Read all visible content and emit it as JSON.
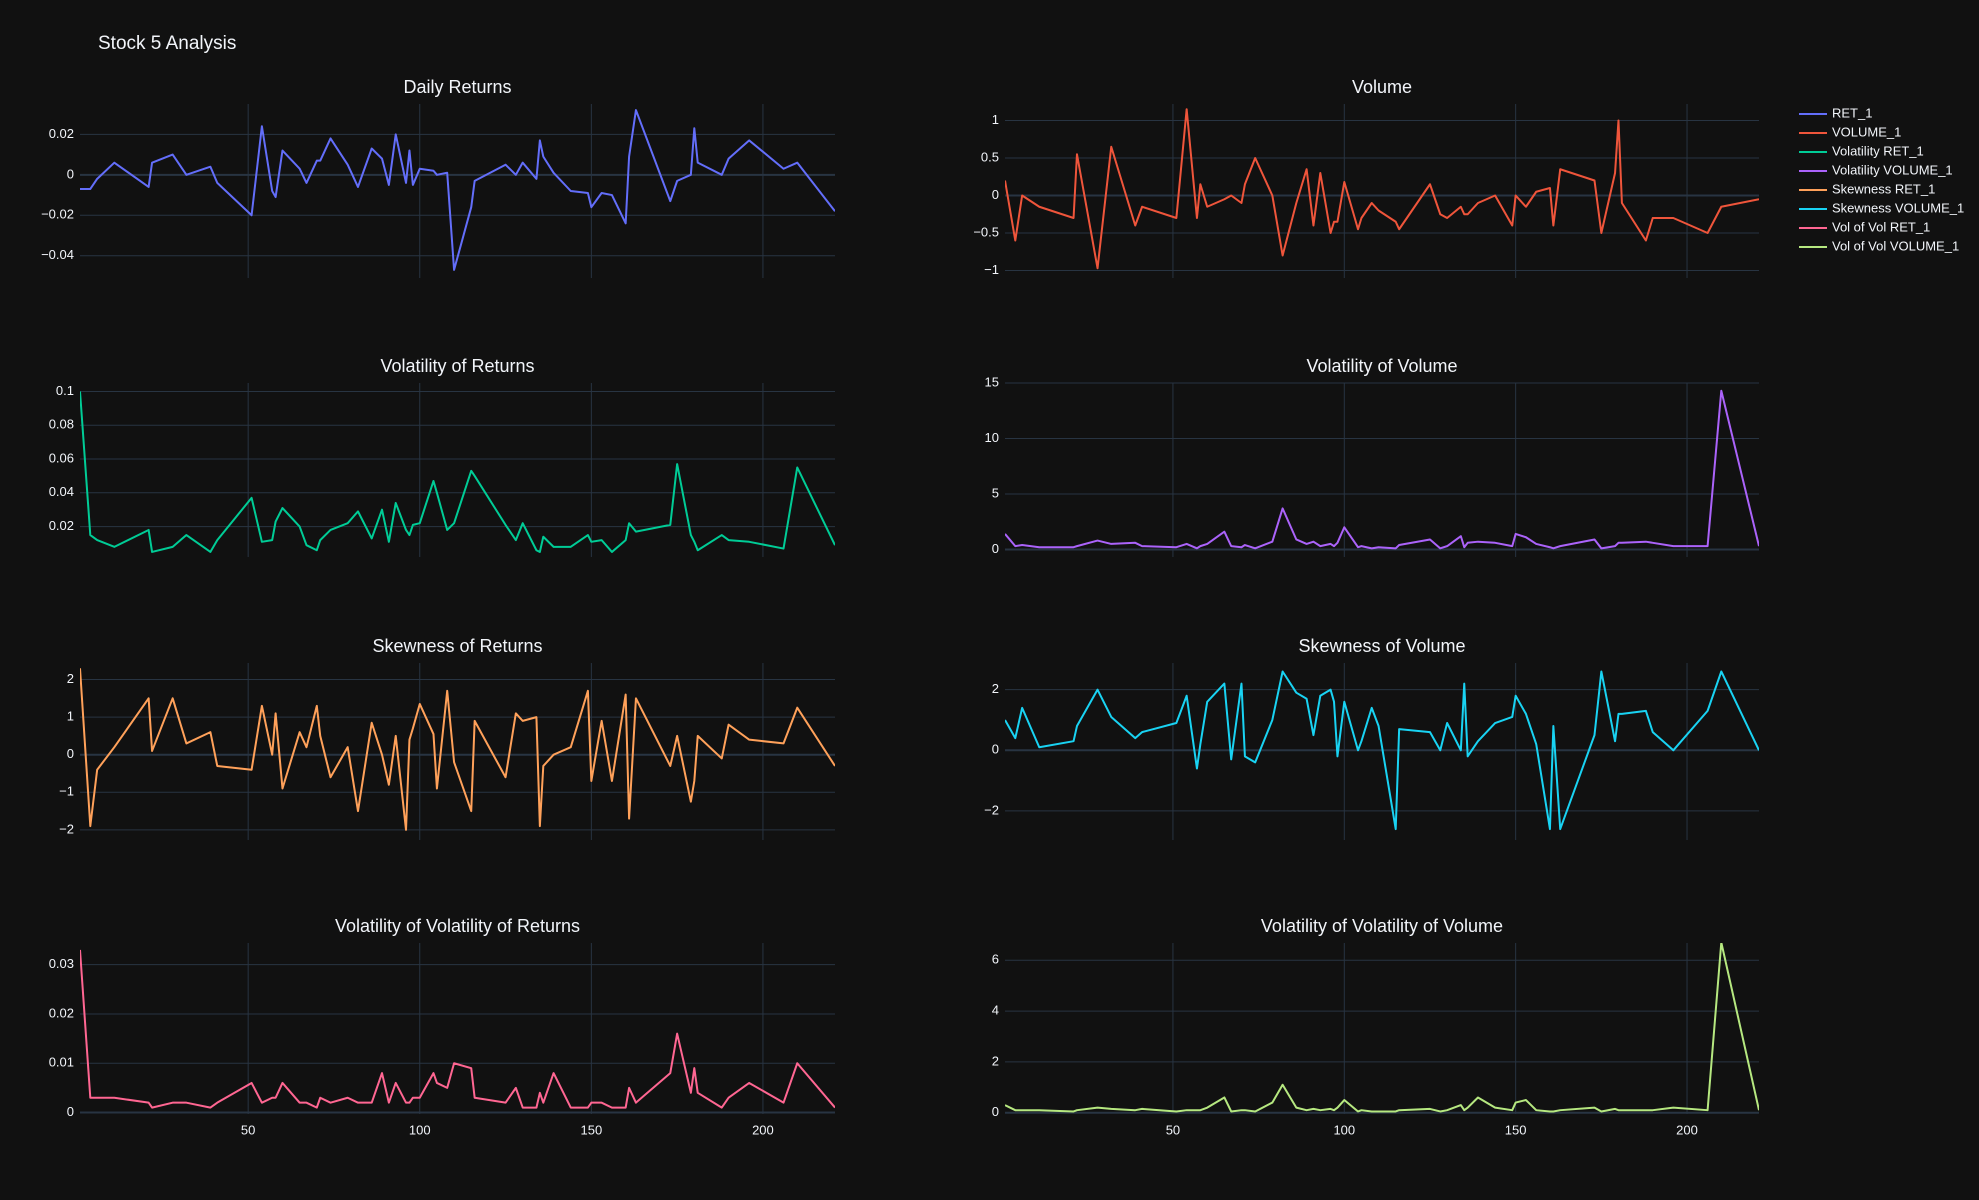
{
  "title": "Stock 5 Analysis",
  "chart_data": [
    {
      "type": "line",
      "title": "Daily Returns",
      "x": [
        1,
        4,
        6,
        11,
        21,
        22,
        28,
        32,
        39,
        41,
        51,
        54,
        57,
        58,
        60,
        65,
        67,
        70,
        71,
        74,
        79,
        82,
        86,
        89,
        91,
        93,
        96,
        97,
        98,
        100,
        104,
        105,
        108,
        110,
        115,
        116,
        125,
        128,
        130,
        134,
        135,
        136,
        139,
        144,
        149,
        150,
        153,
        156,
        160,
        161,
        163,
        173,
        175,
        179,
        180,
        181,
        188,
        190,
        196,
        206,
        210,
        221
      ],
      "series": [
        {
          "name": "RET_1",
          "color": "#636efa",
          "values": [
            -0.007,
            -0.007,
            -0.002,
            0.006,
            -0.006,
            0.006,
            0.01,
            0,
            0.004,
            -0.004,
            -0.02,
            0.024,
            -0.008,
            -0.011,
            0.012,
            0.003,
            -0.004,
            0.007,
            0.007,
            0.018,
            0.005,
            -0.006,
            0.013,
            0.008,
            -0.005,
            0.02,
            -0.004,
            0.012,
            -0.005,
            0.003,
            0.002,
            0,
            0.001,
            -0.047,
            -0.016,
            -0.003,
            0.005,
            0,
            0.006,
            -0.002,
            0.017,
            0.009,
            0.001,
            -0.008,
            -0.009,
            -0.016,
            -0.009,
            -0.01,
            -0.024,
            0.009,
            0.032,
            -0.013,
            -0.003,
            0,
            0.023,
            0.006,
            0,
            0.008,
            0.017,
            0.003,
            0.006,
            -0.018
          ]
        }
      ],
      "xlim": [
        1,
        221
      ],
      "xticks": [
        50,
        100,
        150,
        200
      ],
      "ylim": [
        -0.051,
        0.035
      ],
      "yticks": [
        {
          "value": -0.04,
          "label": "−0.04"
        },
        {
          "value": -0.02,
          "label": "−0.02"
        },
        0,
        0.02
      ]
    },
    {
      "type": "line",
      "title": "Volume",
      "x": [
        1,
        4,
        6,
        11,
        21,
        22,
        28,
        32,
        39,
        41,
        51,
        54,
        57,
        58,
        60,
        65,
        67,
        70,
        71,
        74,
        79,
        82,
        86,
        89,
        91,
        93,
        96,
        97,
        98,
        100,
        104,
        105,
        108,
        110,
        115,
        116,
        125,
        128,
        130,
        134,
        135,
        136,
        139,
        144,
        149,
        150,
        153,
        156,
        160,
        161,
        163,
        173,
        175,
        179,
        180,
        181,
        188,
        190,
        196,
        206,
        210,
        221
      ],
      "series": [
        {
          "name": "VOLUME_1",
          "color": "#EF553B",
          "values": [
            0.2,
            -0.6,
            0,
            -0.15,
            -0.3,
            0.55,
            -0.97,
            0.65,
            -0.4,
            -0.15,
            -0.3,
            1.15,
            -0.3,
            0.15,
            -0.15,
            -0.05,
            0,
            -0.1,
            0.15,
            0.5,
            0,
            -0.8,
            -0.1,
            0.35,
            -0.4,
            0.3,
            -0.5,
            -0.35,
            -0.35,
            0.18,
            -0.45,
            -0.3,
            -0.1,
            -0.2,
            -0.35,
            -0.45,
            0.15,
            -0.25,
            -0.3,
            -0.15,
            -0.25,
            -0.25,
            -0.1,
            0,
            -0.4,
            0,
            -0.15,
            0.05,
            0.1,
            -0.4,
            0.35,
            0.2,
            -0.5,
            0.3,
            1.0,
            -0.1,
            -0.6,
            -0.3,
            -0.3,
            -0.5,
            -0.15,
            -0.05
          ]
        }
      ],
      "xlim": [
        1,
        221
      ],
      "xticks": [
        50,
        100,
        150,
        200
      ],
      "ylim": [
        -1.1,
        1.22
      ],
      "yticks": [
        {
          "value": -1,
          "label": "−1"
        },
        {
          "value": -0.5,
          "label": "−0.5"
        },
        0,
        0.5,
        1
      ]
    },
    {
      "type": "line",
      "title": "Volatility of Returns",
      "x": [
        1,
        4,
        6,
        11,
        21,
        22,
        28,
        32,
        39,
        41,
        51,
        54,
        57,
        58,
        60,
        65,
        67,
        70,
        71,
        74,
        79,
        82,
        86,
        89,
        91,
        93,
        96,
        97,
        98,
        100,
        104,
        105,
        108,
        110,
        115,
        116,
        125,
        128,
        130,
        134,
        135,
        136,
        139,
        144,
        149,
        150,
        153,
        156,
        160,
        161,
        163,
        173,
        175,
        179,
        180,
        181,
        188,
        190,
        196,
        206,
        210,
        221
      ],
      "series": [
        {
          "name": "Volatility RET_1",
          "color": "#00cc96",
          "values": [
            0.1,
            0.015,
            0.012,
            0.008,
            0.018,
            0.005,
            0.008,
            0.015,
            0.005,
            0.012,
            0.037,
            0.011,
            0.012,
            0.023,
            0.031,
            0.02,
            0.009,
            0.006,
            0.012,
            0.018,
            0.022,
            0.029,
            0.013,
            0.03,
            0.011,
            0.034,
            0.018,
            0.015,
            0.021,
            0.022,
            0.047,
            0.04,
            0.018,
            0.022,
            0.053,
            0.05,
            0.021,
            0.012,
            0.022,
            0.006,
            0.005,
            0.014,
            0.008,
            0.008,
            0.015,
            0.011,
            0.012,
            0.005,
            0.012,
            0.022,
            0.017,
            0.021,
            0.057,
            0.015,
            0.011,
            0.006,
            0.015,
            0.012,
            0.011,
            0.007,
            0.055,
            0.009
          ]
        }
      ],
      "xlim": [
        1,
        221
      ],
      "xticks": [
        50,
        100,
        150,
        200
      ],
      "ylim": [
        0.002,
        0.105
      ],
      "yticks": [
        0.02,
        0.04,
        0.06,
        0.08,
        0.1
      ]
    },
    {
      "type": "line",
      "title": "Volatility of Volume",
      "x": [
        1,
        4,
        6,
        11,
        21,
        22,
        28,
        32,
        39,
        41,
        51,
        54,
        57,
        58,
        60,
        65,
        67,
        70,
        71,
        74,
        79,
        82,
        86,
        89,
        91,
        93,
        96,
        97,
        98,
        100,
        104,
        105,
        108,
        110,
        115,
        116,
        125,
        128,
        130,
        134,
        135,
        136,
        139,
        144,
        149,
        150,
        153,
        156,
        160,
        161,
        163,
        173,
        175,
        179,
        180,
        181,
        188,
        190,
        196,
        206,
        210,
        221
      ],
      "series": [
        {
          "name": "Volatility VOLUME_1",
          "color": "#ab63fa",
          "values": [
            1.4,
            0.3,
            0.4,
            0.2,
            0.2,
            0.3,
            0.8,
            0.5,
            0.6,
            0.3,
            0.2,
            0.5,
            0.1,
            0.3,
            0.5,
            1.6,
            0.3,
            0.2,
            0.4,
            0.1,
            0.7,
            3.7,
            0.9,
            0.5,
            0.7,
            0.3,
            0.5,
            0.3,
            0.6,
            2.0,
            0.2,
            0.3,
            0.1,
            0.2,
            0.1,
            0.4,
            0.9,
            0.1,
            0.3,
            1.2,
            0.2,
            0.6,
            0.7,
            0.6,
            0.3,
            1.4,
            1.1,
            0.5,
            0.2,
            0.1,
            0.3,
            0.9,
            0.1,
            0.3,
            0.6,
            0.6,
            0.7,
            0.6,
            0.3,
            0.3,
            14.3,
            0.3
          ]
        }
      ],
      "xlim": [
        1,
        221
      ],
      "xticks": [
        50,
        100,
        150,
        200
      ],
      "ylim": [
        -0.68,
        15
      ],
      "yticks": [
        0,
        5,
        10,
        15
      ]
    },
    {
      "type": "line",
      "title": "Skewness of Returns",
      "x": [
        1,
        4,
        6,
        11,
        21,
        22,
        28,
        32,
        39,
        41,
        51,
        54,
        57,
        58,
        60,
        65,
        67,
        70,
        71,
        74,
        79,
        82,
        86,
        89,
        91,
        93,
        96,
        97,
        98,
        100,
        104,
        105,
        108,
        110,
        115,
        116,
        125,
        128,
        130,
        134,
        135,
        136,
        139,
        144,
        149,
        150,
        153,
        156,
        160,
        161,
        163,
        173,
        175,
        179,
        180,
        181,
        188,
        190,
        196,
        206,
        210,
        221
      ],
      "series": [
        {
          "name": "Skewness RET_1",
          "color": "#FFA15A",
          "values": [
            2.3,
            -1.9,
            -0.4,
            0.2,
            1.5,
            0.1,
            1.5,
            0.3,
            0.6,
            -0.3,
            -0.4,
            1.3,
            0,
            1.1,
            -0.9,
            0.6,
            0.2,
            1.3,
            0.5,
            -0.6,
            0.2,
            -1.5,
            0.85,
            0,
            -0.8,
            0.5,
            -2,
            0.4,
            0.7,
            1.35,
            0.55,
            -0.9,
            1.7,
            -0.2,
            -1.5,
            0.9,
            -0.6,
            1.1,
            0.9,
            1,
            -1.9,
            -0.3,
            0,
            0.2,
            1.7,
            -0.7,
            0.9,
            -0.7,
            1.6,
            -1.7,
            1.5,
            -0.3,
            0.5,
            -1.25,
            -0.7,
            0.5,
            -0.1,
            0.8,
            0.4,
            0.3,
            1.25,
            -0.3
          ]
        }
      ],
      "xlim": [
        1,
        221
      ],
      "xticks": [
        50,
        100,
        150,
        200
      ],
      "ylim": [
        -2.27,
        2.44
      ],
      "yticks": [
        {
          "value": -2,
          "label": "−2"
        },
        {
          "value": -1,
          "label": "−1"
        },
        0,
        1,
        2
      ]
    },
    {
      "type": "line",
      "title": "Skewness of Volume",
      "x": [
        1,
        4,
        6,
        11,
        21,
        22,
        28,
        32,
        39,
        41,
        51,
        54,
        57,
        58,
        60,
        65,
        67,
        70,
        71,
        74,
        79,
        82,
        86,
        89,
        91,
        93,
        96,
        97,
        98,
        100,
        104,
        105,
        108,
        110,
        115,
        116,
        125,
        128,
        130,
        134,
        135,
        136,
        139,
        144,
        149,
        150,
        153,
        156,
        160,
        161,
        163,
        173,
        175,
        179,
        180,
        181,
        188,
        190,
        196,
        206,
        210,
        221
      ],
      "series": [
        {
          "name": "Skewness VOLUME_1",
          "color": "#19d3f3",
          "values": [
            1,
            0.4,
            1.4,
            0.1,
            0.3,
            0.8,
            2,
            1.1,
            0.4,
            0.6,
            0.9,
            1.8,
            -0.6,
            0.2,
            1.6,
            2.2,
            -0.3,
            2.2,
            -0.2,
            -0.4,
            1,
            2.6,
            1.9,
            1.7,
            0.5,
            1.8,
            2,
            1.6,
            -0.2,
            1.6,
            0,
            0.3,
            1.4,
            0.8,
            -2.6,
            0.7,
            0.6,
            0,
            0.9,
            0,
            2.2,
            -0.2,
            0.3,
            0.9,
            1.1,
            1.8,
            1.2,
            0.2,
            -2.6,
            0.8,
            -2.6,
            0.5,
            2.6,
            0.3,
            1.2,
            1.2,
            1.3,
            0.6,
            0,
            1.3,
            2.6,
            0
          ]
        }
      ],
      "xlim": [
        1,
        221
      ],
      "xticks": [
        50,
        100,
        150,
        200
      ],
      "ylim": [
        -2.96,
        2.88
      ],
      "yticks": [
        {
          "value": -2,
          "label": "−2"
        },
        0,
        2
      ]
    },
    {
      "type": "line",
      "title": "Volatility of Volatility of Returns",
      "x": [
        1,
        4,
        6,
        11,
        21,
        22,
        28,
        32,
        39,
        41,
        51,
        54,
        57,
        58,
        60,
        65,
        67,
        70,
        71,
        74,
        79,
        82,
        86,
        89,
        91,
        93,
        96,
        97,
        98,
        100,
        104,
        105,
        108,
        110,
        115,
        116,
        125,
        128,
        130,
        134,
        135,
        136,
        139,
        144,
        149,
        150,
        153,
        156,
        160,
        161,
        163,
        173,
        175,
        179,
        180,
        181,
        188,
        190,
        196,
        206,
        210,
        221
      ],
      "series": [
        {
          "name": "Vol of Vol RET_1",
          "color": "#FF6692",
          "values": [
            0.033,
            0.003,
            0.003,
            0.003,
            0.002,
            0.001,
            0.002,
            0.002,
            0.001,
            0.002,
            0.006,
            0.002,
            0.003,
            0.003,
            0.006,
            0.002,
            0.002,
            0.001,
            0.003,
            0.002,
            0.003,
            0.002,
            0.002,
            0.008,
            0.002,
            0.006,
            0.002,
            0.002,
            0.003,
            0.003,
            0.008,
            0.006,
            0.005,
            0.01,
            0.009,
            0.003,
            0.002,
            0.005,
            0.001,
            0.001,
            0.004,
            0.002,
            0.008,
            0.001,
            0.001,
            0.002,
            0.002,
            0.001,
            0.001,
            0.005,
            0.002,
            0.008,
            0.016,
            0.004,
            0.009,
            0.004,
            0.001,
            0.003,
            0.006,
            0.002,
            0.01,
            0.001
          ]
        }
      ],
      "xlim": [
        1,
        221
      ],
      "xticks": [
        50,
        100,
        150,
        200
      ],
      "ylim": [
        -0.0003,
        0.0344
      ],
      "yticks": [
        0,
        0.01,
        0.02,
        0.03
      ]
    },
    {
      "type": "line",
      "title": "Volatility of Volatility of Volume",
      "x": [
        1,
        4,
        6,
        11,
        21,
        22,
        28,
        32,
        39,
        41,
        51,
        54,
        57,
        58,
        60,
        65,
        67,
        70,
        71,
        74,
        79,
        82,
        86,
        89,
        91,
        93,
        96,
        97,
        98,
        100,
        104,
        105,
        108,
        110,
        115,
        116,
        125,
        128,
        130,
        134,
        135,
        136,
        139,
        144,
        149,
        150,
        153,
        156,
        160,
        161,
        163,
        173,
        175,
        179,
        180,
        181,
        188,
        190,
        196,
        206,
        210,
        221
      ],
      "series": [
        {
          "name": "Vol of Vol VOLUME_1",
          "color": "#B6E880",
          "values": [
            0.3,
            0.1,
            0.1,
            0.1,
            0.05,
            0.1,
            0.2,
            0.15,
            0.1,
            0.15,
            0.05,
            0.1,
            0.1,
            0.1,
            0.2,
            0.6,
            0.05,
            0.1,
            0.1,
            0.05,
            0.4,
            1.1,
            0.2,
            0.1,
            0.15,
            0.1,
            0.15,
            0.1,
            0.2,
            0.5,
            0.05,
            0.1,
            0.05,
            0.05,
            0.05,
            0.1,
            0.15,
            0.05,
            0.1,
            0.3,
            0.1,
            0.2,
            0.6,
            0.2,
            0.1,
            0.4,
            0.5,
            0.1,
            0.05,
            0.05,
            0.1,
            0.2,
            0.05,
            0.15,
            0.1,
            0.1,
            0.1,
            0.1,
            0.2,
            0.1,
            6.7,
            0.1
          ]
        }
      ],
      "xlim": [
        1,
        221
      ],
      "xticks": [
        50,
        100,
        150,
        200
      ],
      "ylim": [
        -0.05,
        6.68
      ],
      "yticks": [
        0,
        2,
        4,
        6
      ]
    }
  ]
}
